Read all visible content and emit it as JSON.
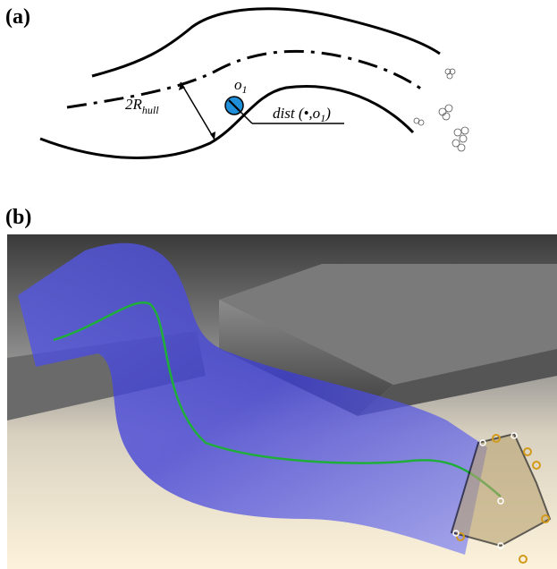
{
  "panels": [
    {
      "label": "(a)"
    },
    {
      "label": "(b)"
    }
  ],
  "annotations": {
    "radius": {
      "main": "2R",
      "sub": "hull"
    },
    "obstacle": {
      "main": "o",
      "sub": "1"
    },
    "distance": {
      "main": "dist",
      "open": " (•,o",
      "sub": "1",
      "close": ")"
    }
  }
}
